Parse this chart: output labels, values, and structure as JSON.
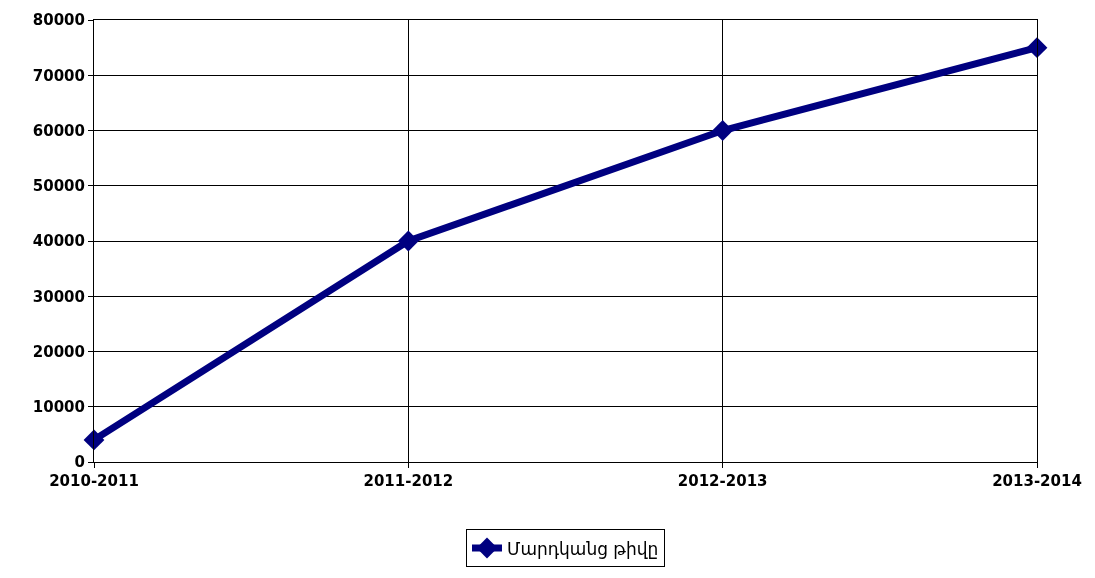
{
  "chart_data": {
    "type": "line",
    "categories": [
      "2010-2011",
      "2011-2012",
      "2012-2013",
      "2013-2014"
    ],
    "series": [
      {
        "name": "Մարդկանց թիվը",
        "color": "#000080",
        "values": [
          4000,
          40000,
          60000,
          75000
        ]
      }
    ],
    "ylim": [
      0,
      80000
    ],
    "yticks": [
      0,
      10000,
      20000,
      30000,
      40000,
      50000,
      60000,
      70000,
      80000
    ],
    "grid": true,
    "legend": "bottom",
    "marker": "diamond",
    "line_style": "solid"
  }
}
